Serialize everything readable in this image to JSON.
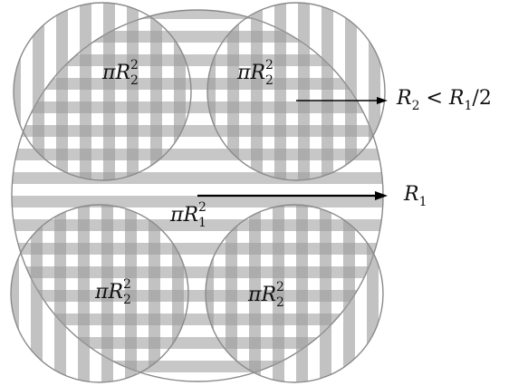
{
  "diagram": {
    "colors": {
      "hatch": "#9a9a9a",
      "outline": "#8a8a8a",
      "arrow": "#000000",
      "background": "#ffffff"
    },
    "large_circle": {
      "area_label": {
        "symbol": "π",
        "var": "R",
        "sub": "1",
        "sup": "2"
      },
      "radius_label": {
        "var": "R",
        "sub": "1"
      }
    },
    "small_circles": [
      {
        "name": "top-left",
        "area_label": {
          "symbol": "π",
          "var": "R",
          "sub": "2",
          "sup": "2"
        }
      },
      {
        "name": "top-right",
        "area_label": {
          "symbol": "π",
          "var": "R",
          "sub": "2",
          "sup": "2"
        }
      },
      {
        "name": "bottom-left",
        "area_label": {
          "symbol": "π",
          "var": "R",
          "sub": "2",
          "sup": "2"
        }
      },
      {
        "name": "bottom-right",
        "area_label": {
          "symbol": "π",
          "var": "R",
          "sub": "2",
          "sup": "2"
        }
      }
    ],
    "condition_label": {
      "lhs_var": "R",
      "lhs_sub": "2",
      "op": " < ",
      "rhs_var": "R",
      "rhs_sub": "1",
      "rhs_tail": "/2"
    }
  }
}
